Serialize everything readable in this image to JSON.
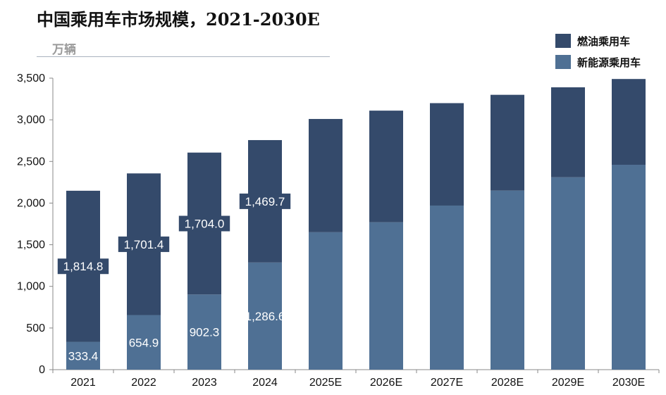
{
  "page": {
    "title": "中国乘用车市场规模，2021-2030E",
    "unit": "万辆"
  },
  "chart_data": {
    "type": "bar",
    "stacked": true,
    "categories": [
      "2021",
      "2022",
      "2023",
      "2024",
      "2025E",
      "2026E",
      "2027E",
      "2028E",
      "2029E",
      "2030E"
    ],
    "series": [
      {
        "name": "新能源乘用车",
        "color": "#4f7094",
        "values": [
          333.4,
          654.9,
          902.3,
          1286.6,
          1650,
          1770,
          1970,
          2150,
          2310,
          2460
        ],
        "labels": [
          "333.4",
          "654.9",
          "902.3",
          "1,286.6",
          "",
          "",
          "",
          "",
          "",
          ""
        ]
      },
      {
        "name": "燃油乘用车",
        "color": "#344a6b",
        "values": [
          1814.8,
          1701.4,
          1704.0,
          1469.7,
          1360,
          1340,
          1230,
          1150,
          1080,
          1030
        ],
        "labels": [
          "1,814.8",
          "1,701.4",
          "1,704.0",
          "1,469.7",
          "",
          "",
          "",
          "",
          "",
          ""
        ]
      }
    ],
    "legend_order": [
      "燃油乘用车",
      "新能源乘用车"
    ],
    "ylim": [
      0,
      3500
    ],
    "yticks": [
      0,
      500,
      1000,
      1500,
      2000,
      2500,
      3000,
      3500
    ],
    "ytick_labels": [
      "0",
      "500",
      "1,000",
      "1,500",
      "2,000",
      "2,500",
      "3,000",
      "3,500"
    ],
    "xlabel": "",
    "ylabel": "",
    "grid": false,
    "legend_position": "top-right"
  }
}
